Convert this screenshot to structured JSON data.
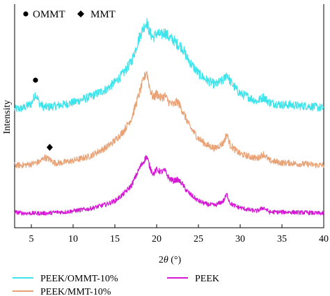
{
  "chart_data": {
    "type": "line",
    "xlabel_prefix": "2",
    "xlabel_symbol": "θ",
    "xlabel_suffix": " (°)",
    "ylabel": "Intensity",
    "xlim": [
      3,
      40
    ],
    "xticks": [
      5,
      10,
      15,
      20,
      25,
      30,
      35,
      40
    ],
    "y_tick_labels": false,
    "marker_legend": [
      {
        "symbol": "circle",
        "label": "OMMT"
      },
      {
        "symbol": "diamond",
        "label": "MMT"
      }
    ],
    "series": [
      {
        "name": "PEEK/OMMT-10%",
        "color": "#3fe3ea",
        "x": [
          3,
          4,
          5,
          5.5,
          6,
          6.5,
          7,
          8,
          10,
          12,
          14,
          15,
          16,
          17,
          17.5,
          18,
          18.5,
          18.8,
          19.2,
          19.6,
          20,
          20.5,
          21,
          21.5,
          22,
          22.5,
          23,
          23.5,
          24,
          25,
          26,
          27,
          28,
          28.4,
          28.8,
          29.5,
          30,
          31,
          32,
          32.8,
          33.5,
          35,
          36,
          37,
          38,
          39,
          40
        ],
        "y": [
          0.53,
          0.535,
          0.555,
          0.6,
          0.555,
          0.54,
          0.54,
          0.545,
          0.56,
          0.585,
          0.62,
          0.65,
          0.69,
          0.745,
          0.8,
          0.86,
          0.9,
          0.92,
          0.87,
          0.85,
          0.87,
          0.86,
          0.875,
          0.85,
          0.84,
          0.82,
          0.81,
          0.77,
          0.74,
          0.69,
          0.66,
          0.64,
          0.66,
          0.69,
          0.655,
          0.62,
          0.6,
          0.585,
          0.565,
          0.585,
          0.56,
          0.55,
          0.55,
          0.545,
          0.545,
          0.54,
          0.535
        ]
      },
      {
        "name": "PEEK/MMT-10%",
        "color": "#e8a276",
        "x": [
          3,
          4,
          5,
          6,
          6.6,
          7.2,
          7.8,
          8.5,
          10,
          12,
          14,
          15,
          16,
          17,
          17.5,
          18,
          18.5,
          18.8,
          19.2,
          19.6,
          20,
          20.5,
          21,
          21.5,
          22,
          22.5,
          23,
          23.5,
          24,
          25,
          26,
          27,
          28,
          28.4,
          28.8,
          29.5,
          30,
          31,
          32,
          32.8,
          33.5,
          35,
          36,
          37,
          38,
          39,
          40
        ],
        "y": [
          0.28,
          0.28,
          0.285,
          0.295,
          0.315,
          0.305,
          0.29,
          0.29,
          0.3,
          0.32,
          0.36,
          0.39,
          0.43,
          0.49,
          0.55,
          0.61,
          0.67,
          0.7,
          0.62,
          0.58,
          0.6,
          0.58,
          0.59,
          0.56,
          0.55,
          0.565,
          0.53,
          0.49,
          0.45,
          0.4,
          0.37,
          0.355,
          0.38,
          0.42,
          0.37,
          0.345,
          0.33,
          0.32,
          0.31,
          0.33,
          0.3,
          0.29,
          0.29,
          0.285,
          0.285,
          0.28,
          0.28
        ]
      },
      {
        "name": "PEEK",
        "color": "#d418d4",
        "x": [
          3,
          4,
          5,
          6,
          7,
          8,
          9,
          10,
          12,
          14,
          15,
          16,
          17,
          17.5,
          18,
          18.5,
          18.8,
          19.2,
          19.6,
          20,
          20.5,
          21,
          21.5,
          22,
          22.5,
          23,
          23.5,
          24,
          25,
          26,
          27,
          28,
          28.4,
          28.8,
          29.5,
          30,
          31,
          32,
          32.8,
          33.5,
          35,
          36,
          37,
          38,
          39,
          40
        ],
        "y": [
          0.07,
          0.065,
          0.065,
          0.065,
          0.065,
          0.07,
          0.07,
          0.075,
          0.085,
          0.105,
          0.12,
          0.15,
          0.19,
          0.23,
          0.27,
          0.3,
          0.32,
          0.27,
          0.24,
          0.26,
          0.25,
          0.255,
          0.22,
          0.21,
          0.215,
          0.2,
          0.17,
          0.15,
          0.12,
          0.105,
          0.1,
          0.12,
          0.15,
          0.11,
          0.095,
          0.09,
          0.08,
          0.075,
          0.09,
          0.07,
          0.07,
          0.07,
          0.068,
          0.068,
          0.065,
          0.065
        ]
      }
    ],
    "markers": [
      {
        "symbol": "circle",
        "x": 5.5,
        "y": 0.66
      },
      {
        "symbol": "diamond",
        "x": 7.2,
        "y": 0.36
      }
    ]
  }
}
